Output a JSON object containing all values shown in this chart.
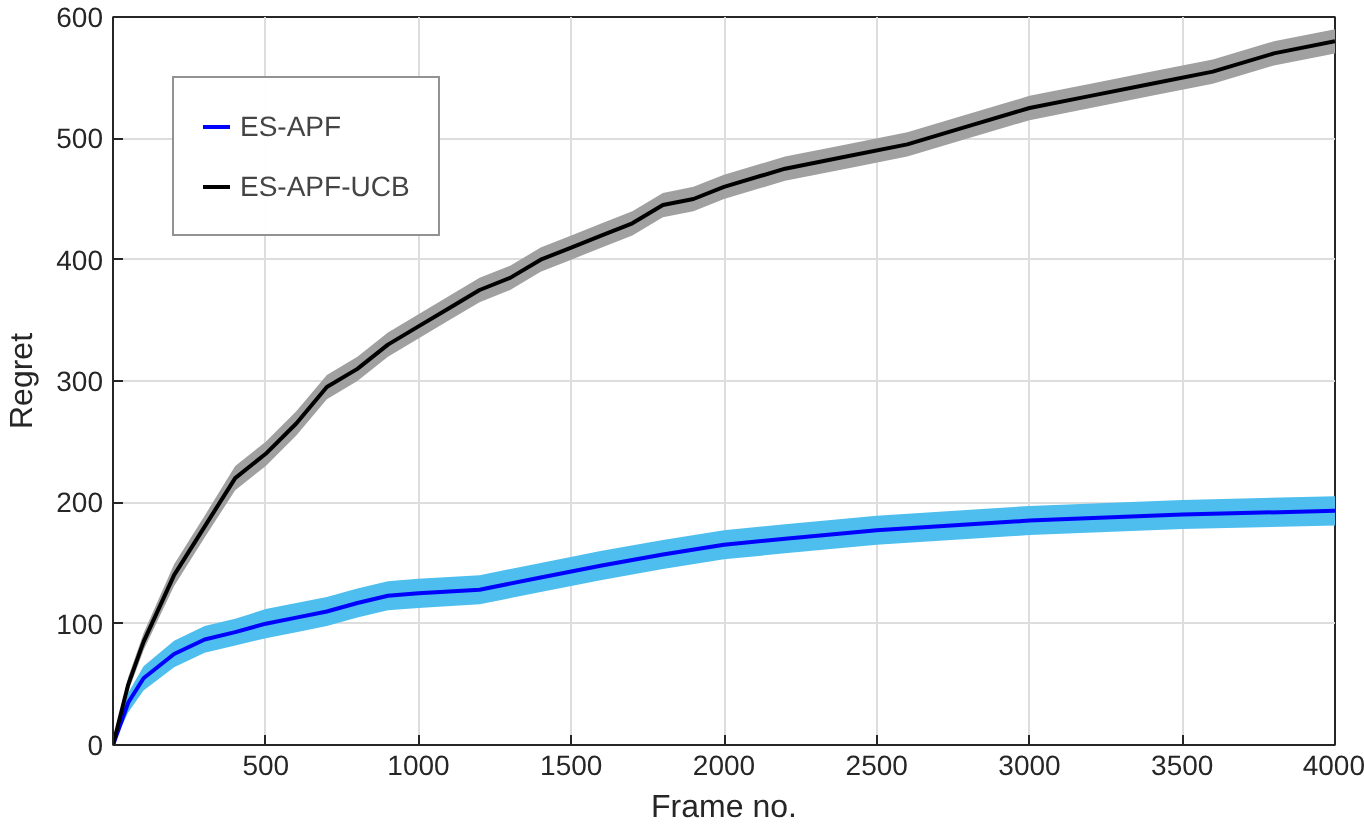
{
  "chart_data": {
    "type": "line",
    "xlabel": "Frame no.",
    "ylabel": "Regret",
    "xlim": [
      0,
      4000
    ],
    "ylim": [
      0,
      600
    ],
    "xticks": [
      500,
      1000,
      1500,
      2000,
      2500,
      3000,
      3500,
      4000
    ],
    "yticks": [
      0,
      100,
      200,
      300,
      400,
      500,
      600
    ],
    "grid": true,
    "legend": "top left",
    "series": [
      {
        "name": "ES-APF",
        "color": "#0000ff",
        "x": [
          0,
          50,
          100,
          200,
          300,
          400,
          500,
          600,
          700,
          800,
          900,
          1000,
          1200,
          1400,
          1600,
          1800,
          2000,
          2200,
          2500,
          3000,
          3500,
          4000
        ],
        "values": [
          0,
          35,
          55,
          75,
          87,
          93,
          100,
          105,
          110,
          117,
          123,
          125,
          128,
          138,
          148,
          157,
          165,
          170,
          177,
          185,
          190,
          193
        ],
        "lower": [
          0,
          27,
          45,
          64,
          76,
          82,
          88,
          93,
          98,
          105,
          111,
          113,
          116,
          126,
          136,
          145,
          153,
          158,
          165,
          173,
          178,
          181
        ],
        "upper": [
          0,
          43,
          65,
          86,
          98,
          104,
          112,
          117,
          122,
          129,
          135,
          137,
          140,
          150,
          160,
          169,
          177,
          182,
          189,
          197,
          202,
          205
        ]
      },
      {
        "name": "ES-APF-UCB",
        "color": "#000000",
        "x": [
          0,
          50,
          100,
          200,
          300,
          400,
          500,
          600,
          700,
          800,
          900,
          1000,
          1100,
          1200,
          1300,
          1400,
          1500,
          1600,
          1700,
          1800,
          1900,
          2000,
          2200,
          2400,
          2600,
          2800,
          3000,
          3200,
          3400,
          3600,
          3800,
          4000
        ],
        "values": [
          0,
          50,
          85,
          140,
          180,
          220,
          240,
          265,
          295,
          310,
          330,
          345,
          360,
          375,
          385,
          400,
          410,
          420,
          430,
          445,
          450,
          460,
          475,
          485,
          495,
          510,
          525,
          535,
          545,
          555,
          570,
          580
        ],
        "lower": [
          0,
          44,
          78,
          131,
          171,
          210,
          230,
          255,
          285,
          300,
          320,
          335,
          350,
          365,
          375,
          390,
          400,
          410,
          420,
          435,
          440,
          450,
          465,
          475,
          485,
          500,
          515,
          525,
          535,
          545,
          560,
          570
        ],
        "upper": [
          0,
          56,
          92,
          149,
          189,
          230,
          250,
          275,
          305,
          320,
          340,
          355,
          370,
          385,
          395,
          410,
          420,
          430,
          440,
          455,
          460,
          470,
          485,
          495,
          505,
          520,
          535,
          545,
          555,
          565,
          580,
          590
        ]
      }
    ]
  }
}
